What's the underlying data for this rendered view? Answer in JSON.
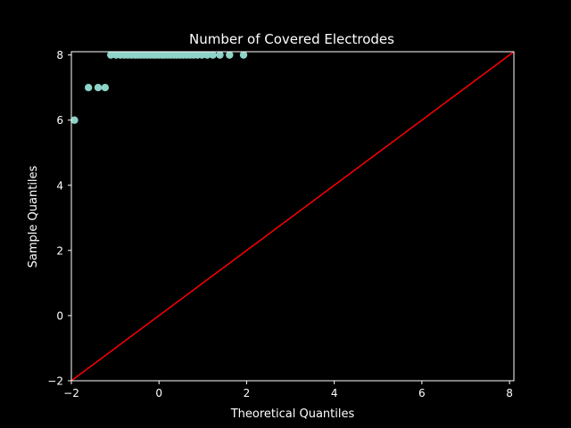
{
  "chart_data": {
    "type": "scatter",
    "title": "Number of Covered Electrodes",
    "xlabel": "Theoretical Quantiles",
    "ylabel": "Sample Quantiles",
    "xlim": [
      -2.0,
      8.1
    ],
    "ylim": [
      -2.0,
      8.1
    ],
    "xticks": [
      -2,
      0,
      2,
      4,
      6,
      8
    ],
    "yticks": [
      -2,
      0,
      2,
      4,
      6,
      8
    ],
    "grid": false,
    "background": "#000000",
    "foreground": "#ffffff",
    "series": [
      {
        "type": "scatter",
        "color": "#8dd3c7",
        "points": [
          [
            -1.93,
            6
          ],
          [
            -1.61,
            7
          ],
          [
            -1.39,
            7
          ],
          [
            -1.23,
            7
          ],
          [
            -1.1,
            8
          ],
          [
            -0.98,
            8
          ],
          [
            -0.88,
            8
          ],
          [
            -0.79,
            8
          ],
          [
            -0.71,
            8
          ],
          [
            -0.63,
            8
          ],
          [
            -0.55,
            8
          ],
          [
            -0.48,
            8
          ],
          [
            -0.41,
            8
          ],
          [
            -0.34,
            8
          ],
          [
            -0.27,
            8
          ],
          [
            -0.2,
            8
          ],
          [
            -0.13,
            8
          ],
          [
            -0.07,
            8
          ],
          [
            0.0,
            8
          ],
          [
            0.07,
            8
          ],
          [
            0.13,
            8
          ],
          [
            0.2,
            8
          ],
          [
            0.27,
            8
          ],
          [
            0.34,
            8
          ],
          [
            0.41,
            8
          ],
          [
            0.48,
            8
          ],
          [
            0.55,
            8
          ],
          [
            0.63,
            8
          ],
          [
            0.71,
            8
          ],
          [
            0.79,
            8
          ],
          [
            0.88,
            8
          ],
          [
            0.98,
            8
          ],
          [
            1.1,
            8
          ],
          [
            1.23,
            8
          ],
          [
            1.39,
            8
          ],
          [
            1.61,
            8
          ],
          [
            1.93,
            8
          ]
        ]
      },
      {
        "type": "line",
        "color": "#ff0000",
        "points": [
          [
            -2.0,
            -2.0
          ],
          [
            8.1,
            8.1
          ]
        ]
      }
    ]
  }
}
